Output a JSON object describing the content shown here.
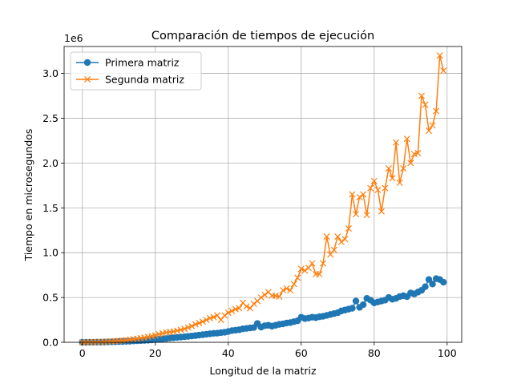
{
  "chart_data": {
    "type": "line",
    "title": "Comparación de tiempos de ejecución",
    "xlabel": "Longitud de la matriz",
    "ylabel": "Tiempo en microsegundos",
    "y_offset_label": "1e6",
    "y_scale": 1000000,
    "xlim": [
      -5,
      104
    ],
    "ylim": [
      0,
      3300000
    ],
    "xticks": [
      0,
      20,
      40,
      60,
      80,
      100
    ],
    "xtick_labels": [
      "0",
      "20",
      "40",
      "60",
      "80",
      "100"
    ],
    "yticks": [
      0,
      500000,
      1000000,
      1500000,
      2000000,
      2500000,
      3000000
    ],
    "ytick_labels": [
      "0.0",
      "0.5",
      "1.0",
      "1.5",
      "2.0",
      "2.5",
      "3.0"
    ],
    "grid": true,
    "legend_position": "top-left",
    "x": [
      0,
      1,
      2,
      3,
      4,
      5,
      6,
      7,
      8,
      9,
      10,
      11,
      12,
      13,
      14,
      15,
      16,
      17,
      18,
      19,
      20,
      21,
      22,
      23,
      24,
      25,
      26,
      27,
      28,
      29,
      30,
      31,
      32,
      33,
      34,
      35,
      36,
      37,
      38,
      39,
      40,
      41,
      42,
      43,
      44,
      45,
      46,
      47,
      48,
      49,
      50,
      51,
      52,
      53,
      54,
      55,
      56,
      57,
      58,
      59,
      60,
      61,
      62,
      63,
      64,
      65,
      66,
      67,
      68,
      69,
      70,
      71,
      72,
      73,
      74,
      75,
      76,
      77,
      78,
      79,
      80,
      81,
      82,
      83,
      84,
      85,
      86,
      87,
      88,
      89,
      90,
      91,
      92,
      93,
      94,
      95,
      96,
      97,
      98,
      99
    ],
    "series": [
      {
        "name": "Primera matriz",
        "color": "#1f77b4",
        "marker": "circle",
        "values": [
          0,
          0,
          500,
          1000,
          1500,
          2000,
          3000,
          4000,
          5000,
          6000,
          8000,
          9000,
          11000,
          12000,
          15000,
          17000,
          19000,
          21000,
          23000,
          26000,
          30000,
          33000,
          38000,
          42000,
          48000,
          51000,
          55000,
          58000,
          62000,
          66000,
          70000,
          75000,
          80000,
          85000,
          90000,
          95000,
          100000,
          102000,
          108000,
          112000,
          120000,
          130000,
          135000,
          140000,
          150000,
          155000,
          160000,
          165000,
          210000,
          170000,
          185000,
          190000,
          180000,
          190000,
          200000,
          205000,
          215000,
          220000,
          230000,
          240000,
          280000,
          265000,
          270000,
          280000,
          275000,
          285000,
          290000,
          300000,
          310000,
          320000,
          330000,
          350000,
          360000,
          370000,
          380000,
          460000,
          390000,
          420000,
          490000,
          470000,
          440000,
          450000,
          460000,
          470000,
          500000,
          480000,
          490000,
          510000,
          520000,
          510000,
          550000,
          540000,
          560000,
          580000,
          620000,
          700000,
          650000,
          710000,
          700000,
          670000
        ]
      },
      {
        "name": "Segunda matriz",
        "color": "#ff7f0e",
        "marker": "x",
        "values": [
          0,
          0,
          1000,
          2000,
          3000,
          4000,
          6000,
          8000,
          10000,
          13000,
          16000,
          20000,
          24000,
          29000,
          34000,
          40000,
          46000,
          52000,
          60000,
          68000,
          77000,
          90000,
          100000,
          110000,
          115000,
          120000,
          130000,
          140000,
          150000,
          165000,
          180000,
          200000,
          215000,
          230000,
          250000,
          270000,
          280000,
          300000,
          250000,
          300000,
          330000,
          350000,
          370000,
          380000,
          440000,
          400000,
          380000,
          430000,
          460000,
          500000,
          530000,
          560000,
          520000,
          520000,
          510000,
          580000,
          600000,
          580000,
          650000,
          720000,
          820000,
          800000,
          830000,
          880000,
          760000,
          760000,
          880000,
          1180000,
          980000,
          1030000,
          1180000,
          1120000,
          1150000,
          1270000,
          1650000,
          1430000,
          1620000,
          1650000,
          1420000,
          1720000,
          1800000,
          1700000,
          1460000,
          1720000,
          1940000,
          1830000,
          2230000,
          1780000,
          1940000,
          2270000,
          2000000,
          2100000,
          2110000,
          2750000,
          2650000,
          2360000,
          2420000,
          2580000,
          3200000,
          3030000
        ]
      }
    ]
  }
}
